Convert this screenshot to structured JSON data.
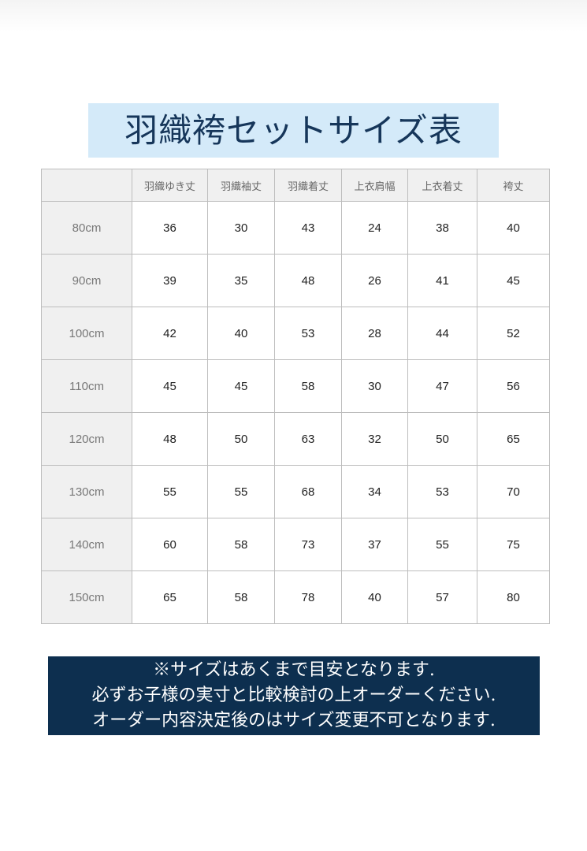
{
  "title": "羽織袴セットサイズ表",
  "table": {
    "headers": [
      "",
      "羽織ゆき丈",
      "羽織袖丈",
      "羽織着丈",
      "上衣肩幅",
      "上衣着丈",
      "袴丈"
    ],
    "rows": [
      [
        "80cm",
        "36",
        "30",
        "43",
        "24",
        "38",
        "40"
      ],
      [
        "90cm",
        "39",
        "35",
        "48",
        "26",
        "41",
        "45"
      ],
      [
        "100cm",
        "42",
        "40",
        "53",
        "28",
        "44",
        "52"
      ],
      [
        "110cm",
        "45",
        "45",
        "58",
        "30",
        "47",
        "56"
      ],
      [
        "120cm",
        "48",
        "50",
        "63",
        "32",
        "50",
        "65"
      ],
      [
        "130cm",
        "55",
        "55",
        "68",
        "34",
        "53",
        "70"
      ],
      [
        "140cm",
        "60",
        "58",
        "73",
        "37",
        "55",
        "75"
      ],
      [
        "150cm",
        "65",
        "58",
        "78",
        "40",
        "57",
        "80"
      ]
    ]
  },
  "notice": [
    "※サイズはあくまで目安となります.",
    "必ずお子様の実寸と比較検討の上オーダーください.",
    "オーダー内容決定後のはサイズ変更不可となります."
  ],
  "colors": {
    "title_bg": "#d4eaf9",
    "notice_bg": "#0d2f4f"
  }
}
